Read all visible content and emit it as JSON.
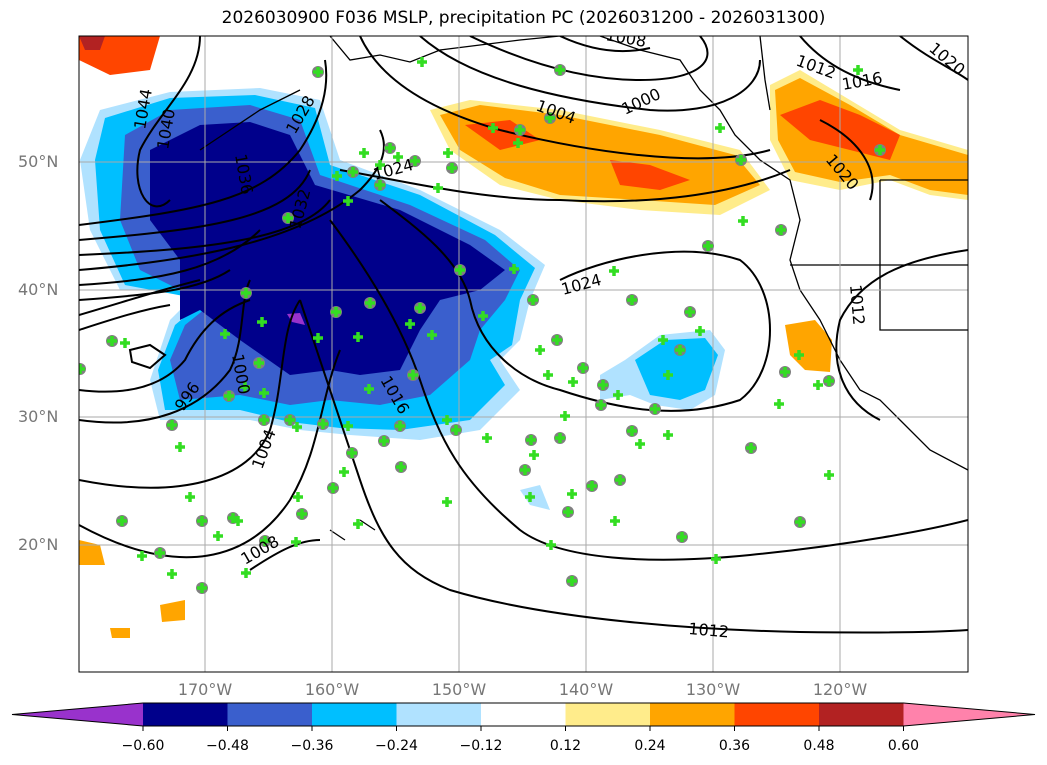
{
  "title": "2026030900 F036 MSLP, precipitation PC (2026031200 - 2026031300)",
  "lat_labels": [
    "50°N",
    "40°N",
    "30°N",
    "20°N"
  ],
  "lon_labels": [
    "170°W",
    "160°W",
    "150°W",
    "140°W",
    "130°W",
    "120°W"
  ],
  "map_extent": {
    "lon": [
      -180,
      -110
    ],
    "lat": [
      10,
      60
    ]
  },
  "colorbar": {
    "ticks": [
      "−0.60",
      "−0.48",
      "−0.36",
      "−0.24",
      "−0.12",
      "0.12",
      "0.24",
      "0.36",
      "0.48",
      "0.60"
    ],
    "colors": [
      "#9932CC",
      "#00008B",
      "#3A5FCD",
      "#00BFFF",
      "#B0E2FF",
      "#FFFFFF",
      "#FFEC8B",
      "#FFA500",
      "#FF4500",
      "#B22222",
      "#FF82AB"
    ]
  },
  "contour_labels": {
    "c1044": "1044",
    "c1040": "1040",
    "c1036": "1036",
    "c1032": "1032",
    "c1028": "1028",
    "c1024a": "1024",
    "c1024b": "1024",
    "c1020a": "1020",
    "c1020b": "1020",
    "c1016a": "1016",
    "c1016b": "1016",
    "c1012a": "1012",
    "c1012b": "1012",
    "c1012c": "1012",
    "c1008a": "1008",
    "c1008b": "1008",
    "c1004a": "1004",
    "c1004b": "1004",
    "c1000a": "1000",
    "c1000b": "1000",
    "c996": "996"
  }
}
